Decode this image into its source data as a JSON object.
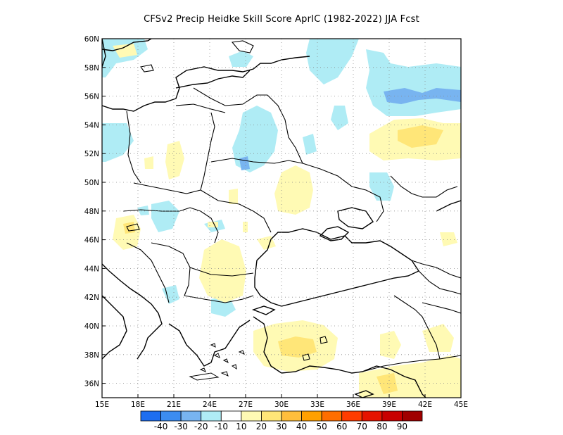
{
  "title": "CFSv2 Precip Heidke Skill Score AprIC (1982-2022) JJA Fcst",
  "map": {
    "lon_range": [
      15,
      45
    ],
    "lat_range": [
      35,
      60
    ],
    "x_ticks": [
      "15E",
      "18E",
      "21E",
      "24E",
      "27E",
      "30E",
      "33E",
      "36E",
      "39E",
      "42E",
      "45E"
    ],
    "y_ticks": [
      "36N",
      "38N",
      "40N",
      "42N",
      "44N",
      "46N",
      "48N",
      "50N",
      "52N",
      "54N",
      "56N",
      "58N",
      "60N"
    ],
    "gridlines": "dotted"
  },
  "colorbar": {
    "labels": [
      "-40",
      "-30",
      "-20",
      "-10",
      "10",
      "20",
      "30",
      "40",
      "50",
      "60",
      "70",
      "80",
      "90"
    ],
    "colors": [
      "#1e6ef0",
      "#3c8cf0",
      "#78b4f0",
      "#afecf5",
      "#ffffff",
      "#fffab4",
      "#ffe678",
      "#ffbe3c",
      "#ffa000",
      "#ff6e00",
      "#ff3c00",
      "#e61400",
      "#c80000",
      "#a00000"
    ]
  }
}
